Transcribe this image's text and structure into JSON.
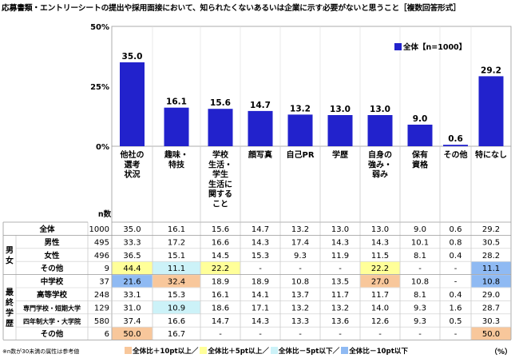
{
  "title": "応募書類・エントリーシートの提出や採用面接において、知られたくないあるいは企業に示す必要がないと思うこと［複数回答形式］",
  "colors": {
    "bar": "#2222cc",
    "plus10": "#f8c79b",
    "plus5": "#ffff99",
    "minus5": "#ccf2f8",
    "minus10": "#8fbaf3"
  },
  "chart_data": {
    "type": "bar",
    "categories": [
      "他社の選考状況",
      "趣味・特技",
      "学校生活・学生生活に関すること",
      "顔写真",
      "自己PR",
      "学歴",
      "自身の強み・弱み",
      "保有資格",
      "その他",
      "特になし"
    ],
    "category_labels": [
      [
        "他社の",
        "選考",
        "状況"
      ],
      [
        "趣味・",
        "特技"
      ],
      [
        "学校",
        "生活・",
        "学生",
        "生活に",
        "関する",
        "こと"
      ],
      [
        "顔写真"
      ],
      [
        "自己PR"
      ],
      [
        "学歴"
      ],
      [
        "自身の",
        "強み・",
        "弱み"
      ],
      [
        "保有",
        "資格"
      ],
      [
        "その他"
      ],
      [
        "特になし"
      ]
    ],
    "series": [
      {
        "name": "全体【n=1000】",
        "values": [
          35.0,
          16.1,
          15.6,
          14.7,
          13.2,
          13.0,
          13.0,
          9.0,
          0.6,
          29.2
        ],
        "labels": [
          "35.0",
          "16.1",
          "15.6",
          "14.7",
          "13.2",
          "13.0",
          "13.0",
          "9.0",
          "0.6",
          "29.2"
        ]
      }
    ],
    "y_ticks": [
      "0%",
      "25%",
      "50%"
    ],
    "ylim": [
      0,
      50
    ],
    "legend_position": "top-right"
  },
  "table": {
    "n_header": "n数",
    "groups": [
      {
        "label": "",
        "rows": [
          0
        ]
      },
      {
        "label": "男女",
        "rows": [
          1,
          2,
          3
        ]
      },
      {
        "label": "最終学歴",
        "rows": [
          4,
          5,
          6,
          7,
          8
        ]
      }
    ],
    "rows": [
      {
        "label": "全体",
        "n": "1000",
        "values": [
          "35.0",
          "16.1",
          "15.6",
          "14.7",
          "13.2",
          "13.0",
          "13.0",
          "9.0",
          "0.6",
          "29.2"
        ],
        "hl": [
          "",
          "",
          "",
          "",
          "",
          "",
          "",
          "",
          "",
          ""
        ]
      },
      {
        "label": "男性",
        "n": "495",
        "values": [
          "33.3",
          "17.2",
          "16.6",
          "14.3",
          "17.4",
          "14.3",
          "14.3",
          "10.1",
          "0.8",
          "30.5"
        ],
        "hl": [
          "",
          "",
          "",
          "",
          "",
          "",
          "",
          "",
          "",
          ""
        ]
      },
      {
        "label": "女性",
        "n": "496",
        "values": [
          "36.5",
          "15.1",
          "14.5",
          "15.3",
          "9.3",
          "11.9",
          "11.5",
          "8.1",
          "0.4",
          "28.2"
        ],
        "hl": [
          "",
          "",
          "",
          "",
          "",
          "",
          "",
          "",
          "",
          ""
        ]
      },
      {
        "label": "その他",
        "n": "9",
        "values": [
          "44.4",
          "11.1",
          "22.2",
          "-",
          "-",
          "-",
          "22.2",
          "-",
          "-",
          "11.1"
        ],
        "hl": [
          "plus5",
          "minus5",
          "plus5",
          "",
          "",
          "",
          "plus5",
          "",
          "",
          "minus10"
        ]
      },
      {
        "label": "中学校",
        "n": "37",
        "values": [
          "21.6",
          "32.4",
          "18.9",
          "18.9",
          "10.8",
          "13.5",
          "27.0",
          "10.8",
          "-",
          "10.8"
        ],
        "hl": [
          "minus10",
          "plus10",
          "",
          "",
          "",
          "",
          "plus10",
          "",
          "",
          "minus10"
        ]
      },
      {
        "label": "高等学校",
        "n": "248",
        "values": [
          "33.1",
          "15.3",
          "16.1",
          "14.1",
          "13.7",
          "11.7",
          "11.7",
          "8.1",
          "0.4",
          "29.0"
        ],
        "hl": [
          "",
          "",
          "",
          "",
          "",
          "",
          "",
          "",
          "",
          ""
        ]
      },
      {
        "label": "専門学校・短期大学",
        "n": "129",
        "values": [
          "31.0",
          "10.9",
          "18.6",
          "17.1",
          "13.2",
          "13.2",
          "14.0",
          "9.3",
          "1.6",
          "28.7"
        ],
        "hl": [
          "",
          "minus5",
          "",
          "",
          "",
          "",
          "",
          "",
          "",
          ""
        ]
      },
      {
        "label": "四年制大学・大学院",
        "n": "580",
        "values": [
          "37.4",
          "16.6",
          "14.7",
          "14.3",
          "13.3",
          "13.6",
          "12.6",
          "9.3",
          "0.5",
          "30.3"
        ],
        "hl": [
          "",
          "",
          "",
          "",
          "",
          "",
          "",
          "",
          "",
          ""
        ]
      },
      {
        "label": "その他",
        "n": "6",
        "values": [
          "50.0",
          "16.7",
          "-",
          "-",
          "-",
          "-",
          "-",
          "-",
          "-",
          "50.0"
        ],
        "hl": [
          "plus10",
          "",
          "",
          "",
          "",
          "",
          "",
          "",
          "",
          "plus10"
        ]
      }
    ]
  },
  "footer": {
    "note": "※n数が30未満の属性は参考値",
    "legend": [
      {
        "key": "plus10",
        "label": "全体比＋10pt以上／"
      },
      {
        "key": "plus5",
        "label": "全体比＋5pt以上／"
      },
      {
        "key": "minus5",
        "label": "全体比－5pt以下／"
      },
      {
        "key": "minus10",
        "label": "全体比－10pt以下"
      }
    ],
    "unit": "（%）"
  }
}
